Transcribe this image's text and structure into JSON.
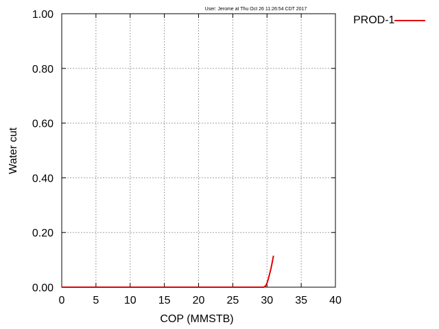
{
  "stamp": "User: Jerome at Thu Oct 26 11:26:54 CDT 2017",
  "chart_data": {
    "type": "line",
    "xlabel": "COP (MMSTB)",
    "ylabel": "Water cut",
    "xlim": [
      0,
      40
    ],
    "ylim": [
      0,
      1.0
    ],
    "x_ticks": [
      0,
      5,
      10,
      15,
      20,
      25,
      30,
      35,
      40
    ],
    "x_tick_labels": [
      "0",
      "5",
      "10",
      "15",
      "20",
      "25",
      "30",
      "35",
      "40"
    ],
    "y_ticks": [
      0,
      0.2,
      0.4,
      0.6,
      0.8,
      1.0
    ],
    "y_tick_labels": [
      "0.00",
      "0.20",
      "0.40",
      "0.60",
      "0.80",
      "1.00"
    ],
    "grid": true,
    "legend_position": "top-right, outside plot",
    "series": [
      {
        "name": "PROD-1",
        "color": "#e00000",
        "x": [
          0,
          5,
          10,
          15,
          20,
          25,
          29.5,
          29.8,
          30.0,
          30.2,
          30.4,
          30.6,
          30.8,
          30.95
        ],
        "y": [
          0,
          0,
          0,
          0,
          0,
          0,
          0.0,
          0.005,
          0.015,
          0.03,
          0.05,
          0.07,
          0.095,
          0.115
        ]
      }
    ]
  }
}
